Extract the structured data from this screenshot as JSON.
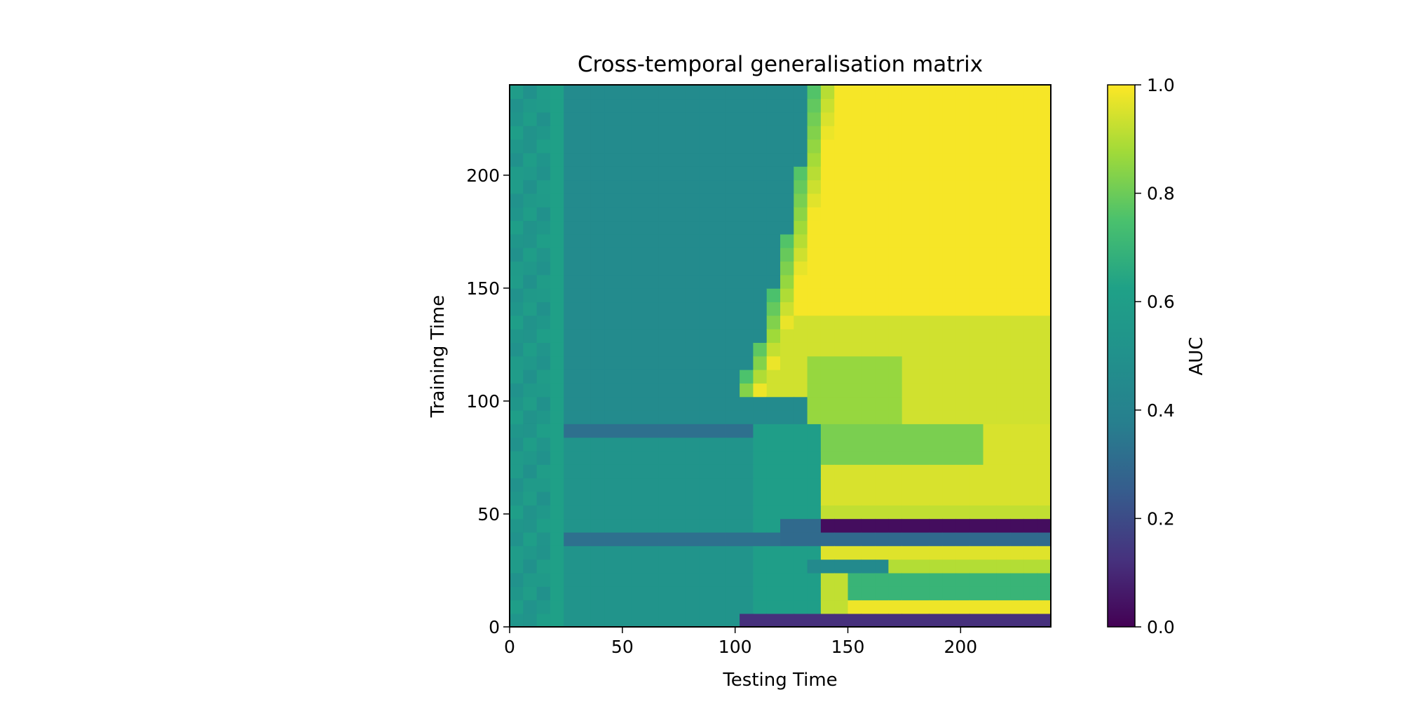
{
  "chart_data": {
    "type": "heatmap",
    "title": "Cross-temporal generalisation matrix",
    "xlabel": "Testing Time",
    "ylabel": "Training Time",
    "xlim": [
      0,
      240
    ],
    "ylim": [
      0,
      240
    ],
    "xticks": [
      0,
      50,
      100,
      150,
      200
    ],
    "yticks": [
      0,
      50,
      100,
      150,
      200
    ],
    "colorbar": {
      "label": "AUC",
      "range": [
        0.0,
        1.0
      ],
      "ticks": [
        "0.0",
        "0.2",
        "0.4",
        "0.6",
        "0.8",
        "1.0"
      ],
      "colormap": "viridis"
    },
    "grid": false,
    "cell_size": 6,
    "approx_values": {
      "description_of_regions": [
        {
          "testing_range": [
            0,
            20
          ],
          "training_range": [
            0,
            240
          ],
          "auc": 0.6
        },
        {
          "testing_range": [
            20,
            120
          ],
          "training_range": [
            95,
            240
          ],
          "auc": 0.45
        },
        {
          "testing_range": [
            125,
            240
          ],
          "training_range": [
            140,
            240
          ],
          "auc": 1.0
        },
        {
          "testing_range": [
            140,
            240
          ],
          "training_range": [
            90,
            140
          ],
          "auc": 0.95
        },
        {
          "testing_range": [
            20,
            110
          ],
          "training_range": [
            0,
            90
          ],
          "auc": 0.5
        },
        {
          "testing_range": [
            140,
            240
          ],
          "training_range": [
            40,
            50
          ],
          "auc": 0.05
        },
        {
          "testing_range": [
            150,
            240
          ],
          "training_range": [
            55,
            90
          ],
          "auc": 0.95
        },
        {
          "testing_range": [
            150,
            240
          ],
          "training_range": [
            0,
            38
          ],
          "auc": 0.85
        }
      ]
    }
  }
}
